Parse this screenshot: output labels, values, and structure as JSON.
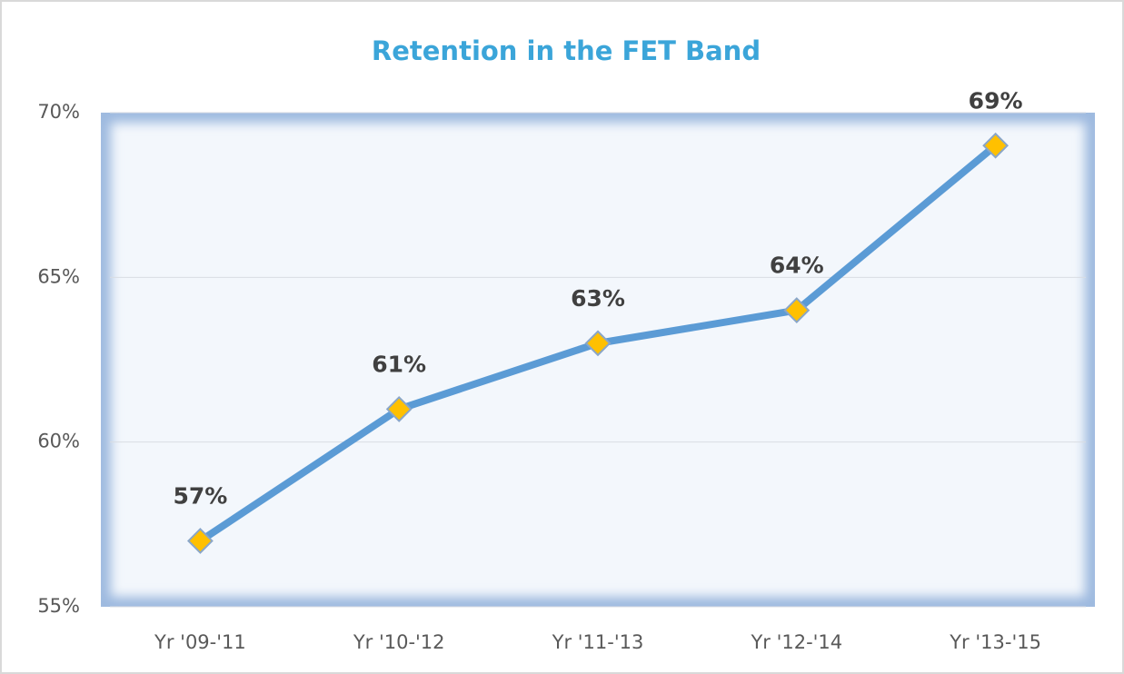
{
  "chart_data": {
    "type": "line",
    "title": "Retention in the FET Band",
    "categories": [
      "Yr '09-'11",
      "Yr '10-'12",
      "Yr '11-'13",
      "Yr '12-'14",
      "Yr '13-'15"
    ],
    "series": [
      {
        "name": "Retention",
        "color": "#5b9bd5",
        "marker_color": "#ffc000",
        "values": [
          57,
          61,
          63,
          64,
          69
        ],
        "value_labels": [
          "57%",
          "61%",
          "63%",
          "64%",
          "69%"
        ]
      }
    ],
    "ylim": [
      55,
      70
    ],
    "yticks": [
      {
        "value": 55,
        "label": "55%"
      },
      {
        "value": 60,
        "label": "60%"
      },
      {
        "value": 65,
        "label": "65%"
      },
      {
        "value": 70,
        "label": "70%"
      }
    ],
    "grid": true
  }
}
